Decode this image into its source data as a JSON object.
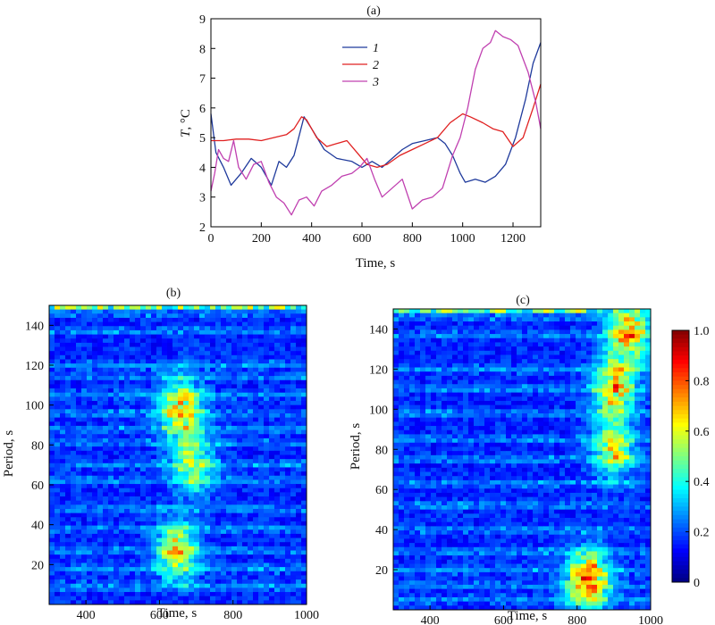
{
  "chart_data": [
    {
      "panel": "(a)",
      "type": "line",
      "xlabel": "Time, s",
      "ylabel_italic": "T",
      "ylabel_rest": ", °C",
      "xlim": [
        0,
        1310
      ],
      "ylim": [
        2,
        9
      ],
      "xticks": [
        0,
        200,
        400,
        600,
        800,
        1000,
        1200
      ],
      "yticks": [
        2,
        3,
        4,
        5,
        6,
        7,
        8,
        9
      ],
      "legend": {
        "placement": "upper-center"
      },
      "series": [
        {
          "name": "1",
          "color": "#1f3a9c",
          "x": [
            0,
            20,
            50,
            80,
            120,
            160,
            200,
            240,
            270,
            300,
            330,
            370,
            400,
            450,
            500,
            560,
            600,
            640,
            680,
            720,
            760,
            800,
            850,
            900,
            930,
            960,
            990,
            1010,
            1050,
            1090,
            1130,
            1170,
            1210,
            1250,
            1280,
            1310
          ],
          "y": [
            5.8,
            4.5,
            4.0,
            3.4,
            3.8,
            4.3,
            4.0,
            3.4,
            4.2,
            4.0,
            4.4,
            5.7,
            5.3,
            4.6,
            4.3,
            4.2,
            4.0,
            4.2,
            4.0,
            4.3,
            4.6,
            4.8,
            4.9,
            5.0,
            4.8,
            4.4,
            3.8,
            3.5,
            3.6,
            3.5,
            3.7,
            4.1,
            5.0,
            6.3,
            7.5,
            8.2
          ]
        },
        {
          "name": "2",
          "color": "#e02020",
          "x": [
            0,
            50,
            100,
            150,
            200,
            250,
            300,
            330,
            360,
            380,
            420,
            460,
            500,
            540,
            580,
            620,
            660,
            700,
            750,
            800,
            850,
            900,
            950,
            1000,
            1030,
            1080,
            1120,
            1160,
            1200,
            1240,
            1280,
            1310
          ],
          "y": [
            4.9,
            4.9,
            4.95,
            4.95,
            4.9,
            5.0,
            5.1,
            5.3,
            5.7,
            5.6,
            5.0,
            4.7,
            4.8,
            4.9,
            4.5,
            4.1,
            4.0,
            4.1,
            4.4,
            4.6,
            4.8,
            5.0,
            5.5,
            5.8,
            5.7,
            5.5,
            5.3,
            5.2,
            4.7,
            5.0,
            6.0,
            6.8
          ]
        },
        {
          "name": "3",
          "color": "#c040b0",
          "x": [
            0,
            15,
            30,
            50,
            70,
            90,
            110,
            140,
            170,
            200,
            230,
            260,
            290,
            320,
            350,
            380,
            410,
            440,
            480,
            520,
            560,
            590,
            620,
            650,
            680,
            720,
            760,
            800,
            840,
            880,
            920,
            960,
            990,
            1020,
            1050,
            1080,
            1110,
            1130,
            1160,
            1190,
            1220,
            1260,
            1290,
            1310
          ],
          "y": [
            3.2,
            3.8,
            4.6,
            4.3,
            4.2,
            4.9,
            4.0,
            3.6,
            4.1,
            4.2,
            3.5,
            3.0,
            2.8,
            2.4,
            2.9,
            3.0,
            2.7,
            3.2,
            3.4,
            3.7,
            3.8,
            4.0,
            4.3,
            3.6,
            3.0,
            3.3,
            3.6,
            2.6,
            2.9,
            3.0,
            3.3,
            4.4,
            5.0,
            6.0,
            7.3,
            8.0,
            8.2,
            8.6,
            8.4,
            8.3,
            8.1,
            7.2,
            6.2,
            5.3
          ]
        }
      ]
    },
    {
      "panel": "(b)",
      "type": "heatmap",
      "xlabel": "Time, s",
      "ylabel": "Period, s",
      "xlim": [
        300,
        1000
      ],
      "ylim": [
        0,
        150
      ],
      "xticks": [
        400,
        600,
        800,
        1000
      ],
      "yticks": [
        20,
        40,
        60,
        80,
        100,
        120,
        140
      ],
      "columns": 48,
      "rows": 72,
      "band_periods": [
        146,
        137,
        120,
        114,
        105,
        96,
        88,
        81,
        70,
        62,
        48,
        38,
        27,
        18,
        9
      ],
      "hotspots": [
        {
          "center_time": 660,
          "center_period": 98,
          "level": 0.6
        },
        {
          "center_time": 650,
          "center_period": 27,
          "level": 0.55
        },
        {
          "center_time": 690,
          "center_period": 70,
          "level": 0.45
        }
      ]
    },
    {
      "panel": "(c)",
      "type": "heatmap",
      "xlabel": "Time, s",
      "ylabel": "Period, s",
      "xlim": [
        300,
        1000
      ],
      "ylim": [
        0,
        150
      ],
      "xticks": [
        400,
        600,
        800,
        1000
      ],
      "yticks": [
        20,
        40,
        60,
        80,
        100,
        120,
        140
      ],
      "columns": 48,
      "rows": 72,
      "band_periods": [
        146,
        137,
        120,
        110,
        98,
        85,
        75,
        63,
        52,
        40,
        29,
        20,
        12,
        5
      ],
      "hotspots": [
        {
          "center_time": 830,
          "center_period": 15,
          "level": 0.75
        },
        {
          "center_time": 900,
          "center_period": 110,
          "level": 0.6
        },
        {
          "center_time": 900,
          "center_period": 80,
          "level": 0.5
        },
        {
          "center_time": 940,
          "center_period": 137,
          "level": 0.65
        }
      ]
    }
  ],
  "colorbar": {
    "range": [
      0,
      1
    ],
    "ticks": [
      "0",
      "0.2",
      "0.4",
      "0.6",
      "0.8",
      "1.0"
    ]
  }
}
